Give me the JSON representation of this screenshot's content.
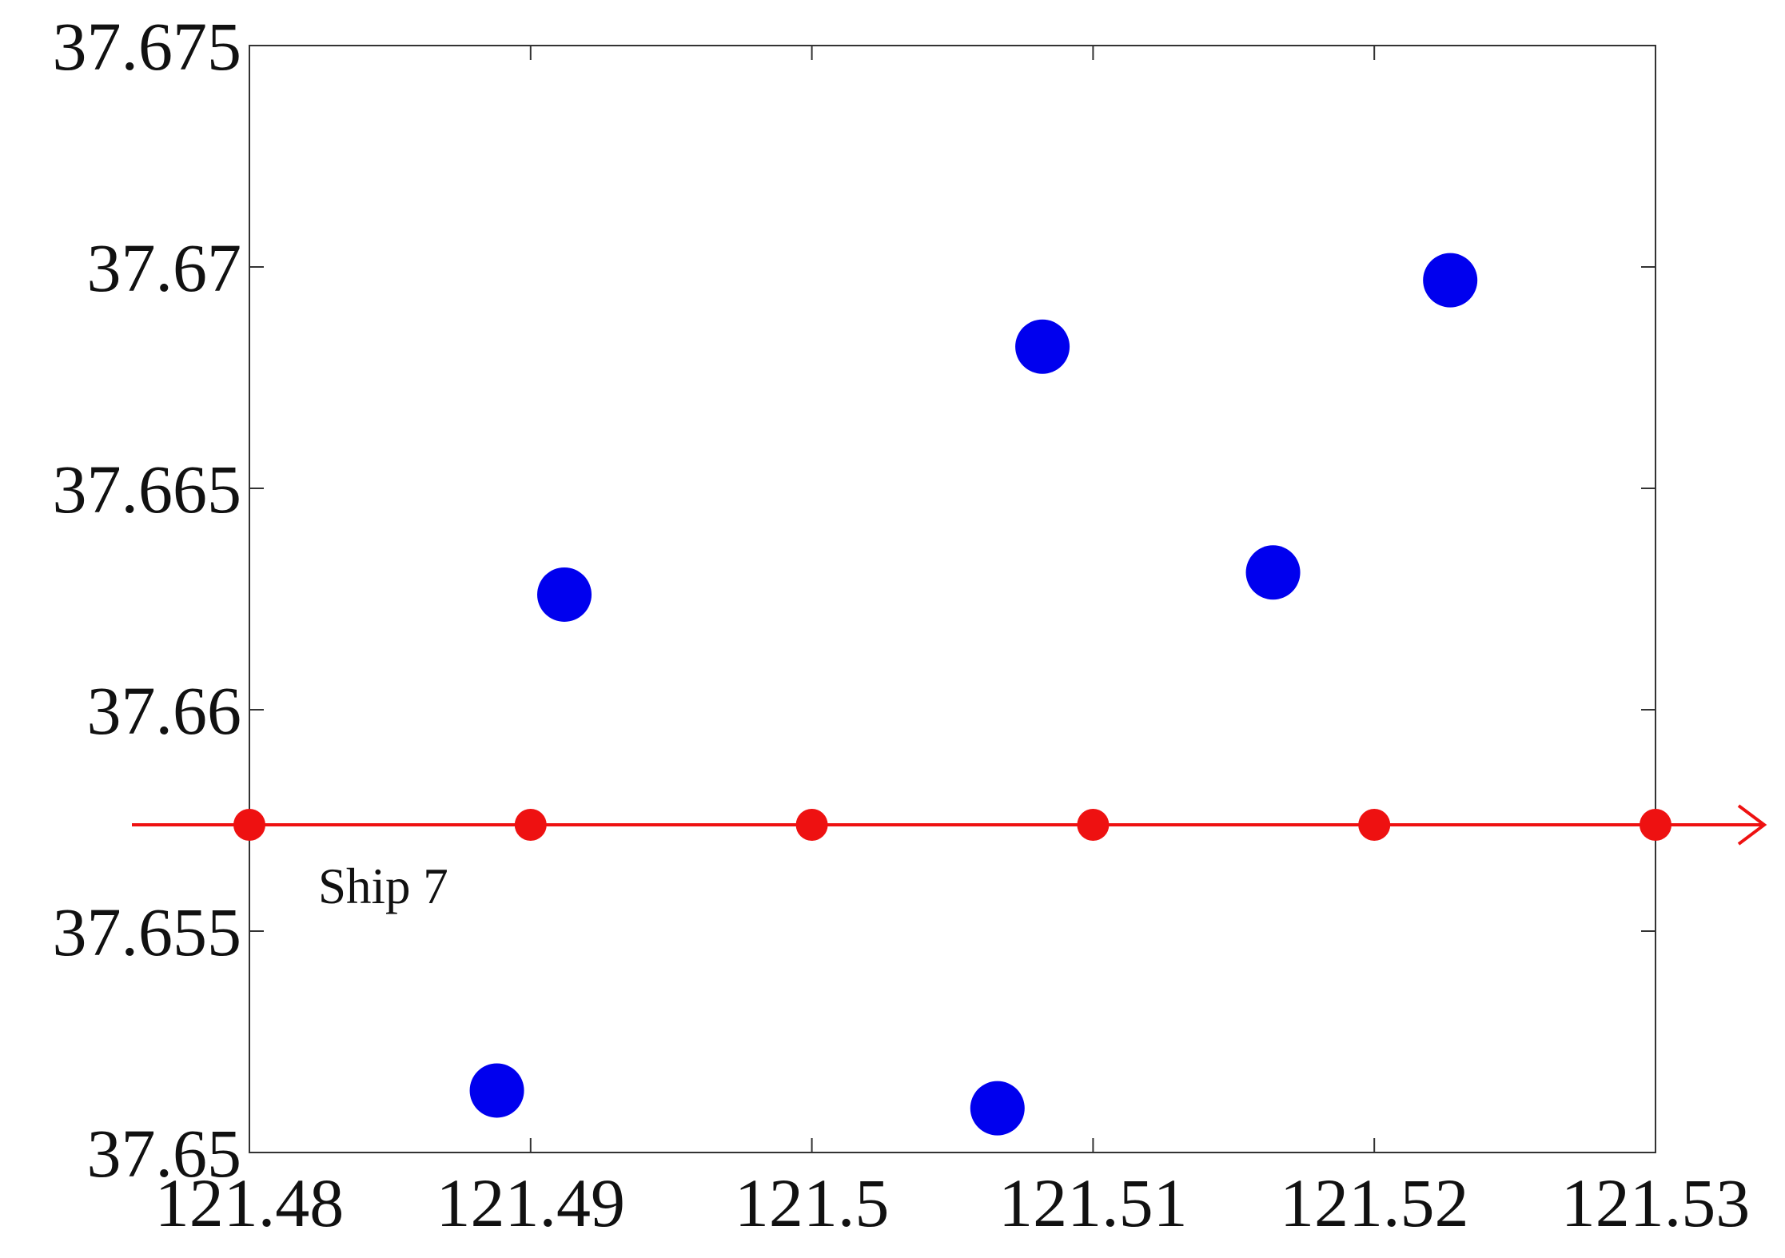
{
  "chart_data": {
    "type": "scatter",
    "annotation": "Ship 7",
    "xlim": [
      121.48,
      121.53
    ],
    "xticks": [
      121.48,
      121.49,
      121.5,
      121.51,
      121.52,
      121.53
    ],
    "ylim": [
      37.65,
      37.675
    ],
    "yticks": [
      37.65,
      37.655,
      37.66,
      37.665,
      37.67,
      37.675
    ],
    "series": [
      {
        "color": "#0000ee",
        "marker": "large",
        "x": [
          121.4912,
          121.5082,
          121.5227,
          121.5164,
          121.4888,
          121.5066
        ],
        "y": [
          37.6626,
          37.6682,
          37.6697,
          37.6631,
          37.6514,
          37.651
        ]
      },
      {
        "color": "#ee1111",
        "marker": "small",
        "line": true,
        "x": [
          121.48,
          121.49,
          121.5,
          121.51,
          121.52,
          121.53
        ],
        "y": [
          37.6574,
          37.6574,
          37.6574,
          37.6574,
          37.6574,
          37.6574
        ]
      }
    ]
  }
}
